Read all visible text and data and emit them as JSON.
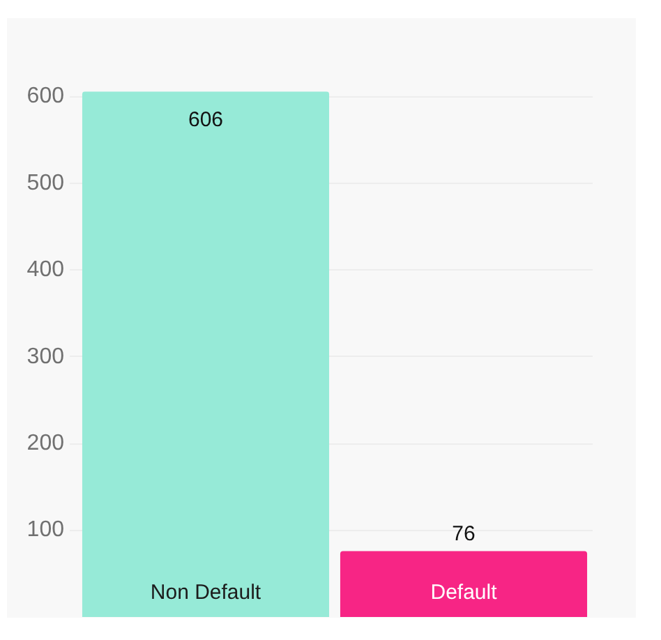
{
  "chart_data": {
    "type": "bar",
    "categories": [
      "Non Default",
      "Default"
    ],
    "values": [
      606,
      76
    ],
    "colors": [
      "#96ead7",
      "#f72585"
    ],
    "ylim": [
      0,
      606
    ],
    "yticks": [
      100,
      200,
      300,
      400,
      500,
      600
    ],
    "grid": "y",
    "legend": false,
    "data_labels": true
  }
}
